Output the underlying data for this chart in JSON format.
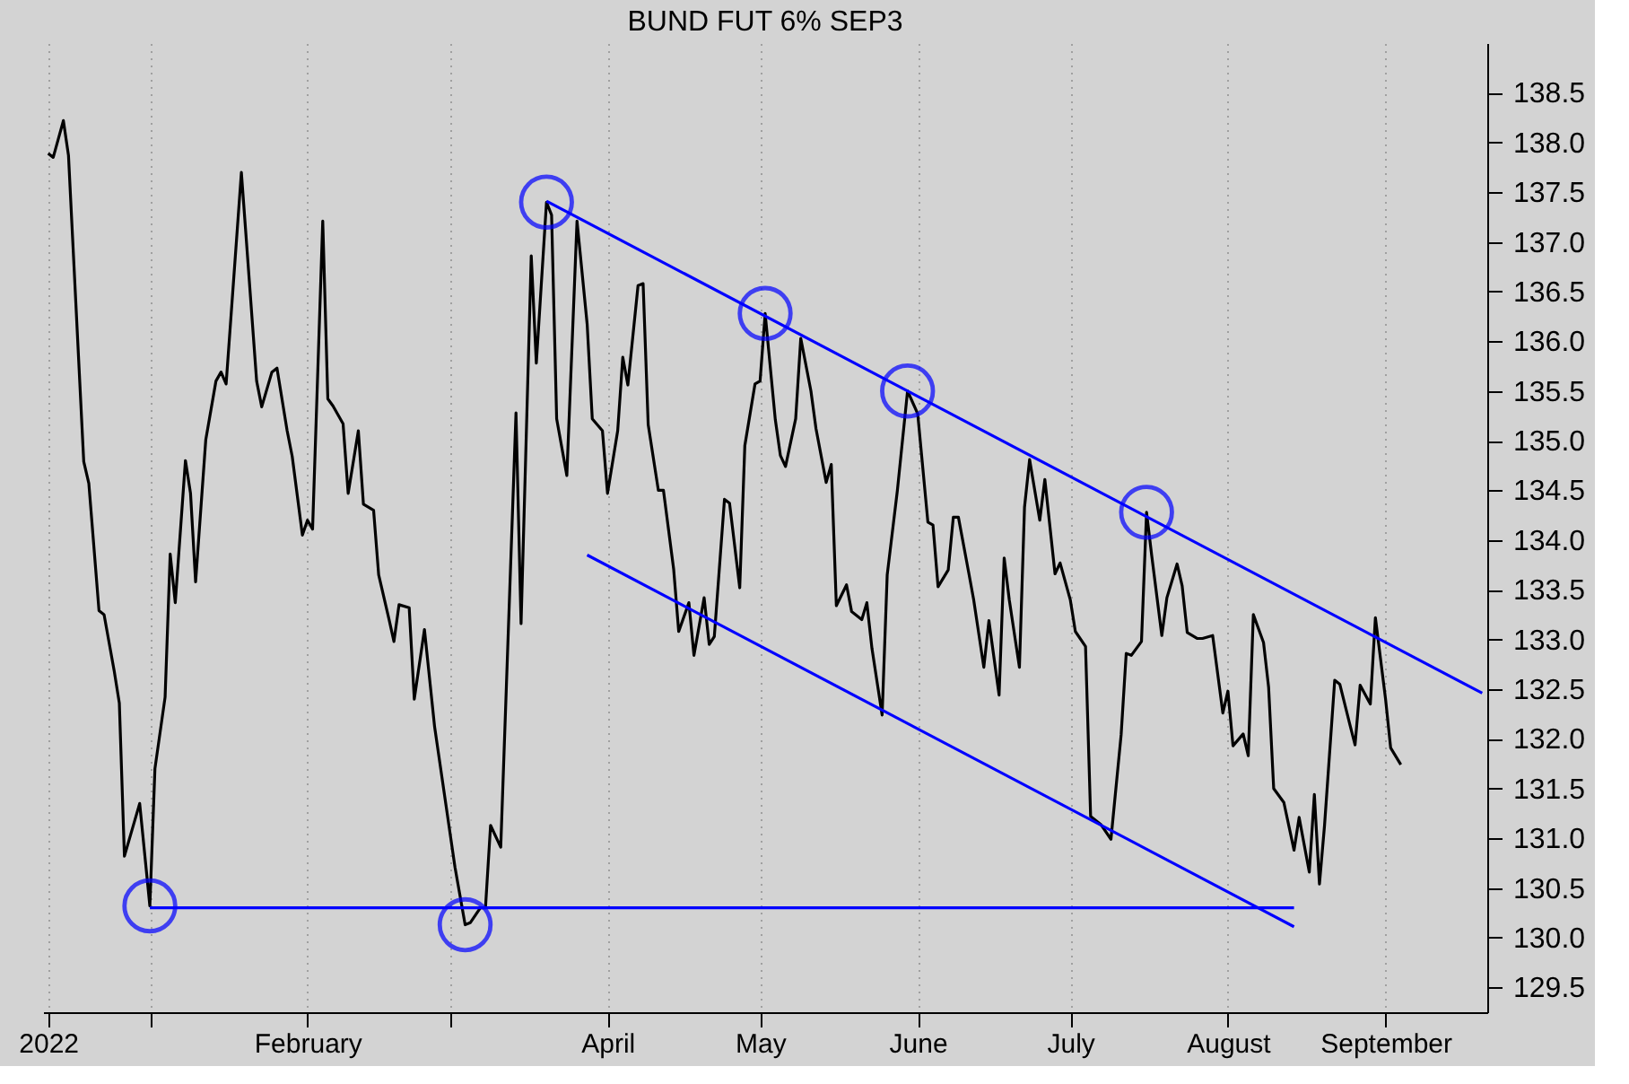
{
  "chart_data": {
    "type": "line",
    "title": "BUND FUT 6% SEP3",
    "xlim": [
      "2022-12-11",
      "2023-09-21"
    ],
    "ylim": [
      129.25,
      139.0
    ],
    "xticks": [
      {
        "value": "2022-12-12",
        "label": "2022"
      },
      {
        "value": "2023-01-01",
        "label": null
      },
      {
        "value": "2023-02-01",
        "label": "February"
      },
      {
        "value": "2023-03-01",
        "label": null
      },
      {
        "value": "2023-04-01",
        "label": "April"
      },
      {
        "value": "2023-05-01",
        "label": "May"
      },
      {
        "value": "2023-06-01",
        "label": "June"
      },
      {
        "value": "2023-07-01",
        "label": "July"
      },
      {
        "value": "2023-08-01",
        "label": "August"
      },
      {
        "value": "2023-09-01",
        "label": "September"
      }
    ],
    "yticks": [
      {
        "value": 129.5,
        "label": "129.5"
      },
      {
        "value": 130,
        "label": "130.0"
      },
      {
        "value": 130.5,
        "label": "130.5"
      },
      {
        "value": 131,
        "label": "131.0"
      },
      {
        "value": 131.5,
        "label": "131.5"
      },
      {
        "value": 132,
        "label": "132.0"
      },
      {
        "value": 132.5,
        "label": "132.5"
      },
      {
        "value": 133,
        "label": "133.0"
      },
      {
        "value": 133.5,
        "label": "133.5"
      },
      {
        "value": 134,
        "label": "134.0"
      },
      {
        "value": 134.5,
        "label": "134.5"
      },
      {
        "value": 135,
        "label": "135.0"
      },
      {
        "value": 135.5,
        "label": "135.5"
      },
      {
        "value": 136,
        "label": "136.0"
      },
      {
        "value": 136.5,
        "label": "136.5"
      },
      {
        "value": 137,
        "label": "137.0"
      },
      {
        "value": 137.5,
        "label": "137.5"
      },
      {
        "value": 138,
        "label": "138.0"
      },
      {
        "value": 138.5,
        "label": "138.5"
      }
    ],
    "grid": "x",
    "line_style": "solid",
    "series": [
      {
        "color": "#000000",
        "x": [
          "2022-12-12",
          "2022-12-13",
          "2022-12-15",
          "2022-12-16",
          "2022-12-19",
          "2022-12-20",
          "2022-12-22",
          "2022-12-23",
          "2022-12-25",
          "2022-12-26",
          "2022-12-27",
          "2022-12-30",
          "2023-01-01",
          "2023-01-02",
          "2023-01-04",
          "2023-01-05",
          "2023-01-06",
          "2023-01-08",
          "2023-01-09",
          "2023-01-10",
          "2023-01-12",
          "2023-01-14",
          "2023-01-15",
          "2023-01-16",
          "2023-01-19",
          "2023-01-22",
          "2023-01-23",
          "2023-01-25",
          "2023-01-26",
          "2023-01-28",
          "2023-01-29",
          "2023-01-31",
          "2023-02-01",
          "2023-02-02",
          "2023-02-04",
          "2023-02-05",
          "2023-02-06",
          "2023-02-08",
          "2023-02-09",
          "2023-02-11",
          "2023-02-12",
          "2023-02-14",
          "2023-02-15",
          "2023-02-17",
          "2023-02-18",
          "2023-02-19",
          "2023-02-21",
          "2023-02-22",
          "2023-02-24",
          "2023-02-26",
          "2023-03-02",
          "2023-03-04",
          "2023-03-05",
          "2023-03-07",
          "2023-03-08",
          "2023-03-09",
          "2023-03-11",
          "2023-03-14",
          "2023-03-15",
          "2023-03-17",
          "2023-03-18",
          "2023-03-20",
          "2023-03-21",
          "2023-03-22",
          "2023-03-24",
          "2023-03-26",
          "2023-03-28",
          "2023-03-29",
          "2023-03-31",
          "2023-04-01",
          "2023-04-03",
          "2023-04-04",
          "2023-04-05",
          "2023-04-07",
          "2023-04-08",
          "2023-04-09",
          "2023-04-11",
          "2023-04-12",
          "2023-04-14",
          "2023-04-15",
          "2023-04-17",
          "2023-04-18",
          "2023-04-20",
          "2023-04-21",
          "2023-04-22",
          "2023-04-24",
          "2023-04-25",
          "2023-04-27",
          "2023-04-28",
          "2023-04-30",
          "2023-05-01",
          "2023-05-02",
          "2023-05-04",
          "2023-05-05",
          "2023-05-06",
          "2023-05-08",
          "2023-05-09",
          "2023-05-11",
          "2023-05-12",
          "2023-05-14",
          "2023-05-15",
          "2023-05-16",
          "2023-05-18",
          "2023-05-19",
          "2023-05-21",
          "2023-05-22",
          "2023-05-23",
          "2023-05-25",
          "2023-05-26",
          "2023-05-28",
          "2023-05-30",
          "2023-06-01",
          "2023-06-03",
          "2023-06-04",
          "2023-06-05",
          "2023-06-07",
          "2023-06-08",
          "2023-06-09",
          "2023-06-11",
          "2023-06-12",
          "2023-06-14",
          "2023-06-15",
          "2023-06-17",
          "2023-06-18",
          "2023-06-19",
          "2023-06-21",
          "2023-06-22",
          "2023-06-23",
          "2023-06-25",
          "2023-06-26",
          "2023-06-28",
          "2023-06-29",
          "2023-07-01",
          "2023-07-02",
          "2023-07-04",
          "2023-07-05",
          "2023-07-07",
          "2023-07-09",
          "2023-07-11",
          "2023-07-12",
          "2023-07-13",
          "2023-07-15",
          "2023-07-16",
          "2023-07-17",
          "2023-07-19",
          "2023-07-20",
          "2023-07-22",
          "2023-07-23",
          "2023-07-24",
          "2023-07-26",
          "2023-07-27",
          "2023-07-29",
          "2023-07-31",
          "2023-08-01",
          "2023-08-02",
          "2023-08-04",
          "2023-08-05",
          "2023-08-06",
          "2023-08-08",
          "2023-08-09",
          "2023-08-10",
          "2023-08-12",
          "2023-08-14",
          "2023-08-15",
          "2023-08-17",
          "2023-08-18",
          "2023-08-19",
          "2023-08-20",
          "2023-08-22",
          "2023-08-23",
          "2023-08-25",
          "2023-08-26",
          "2023-08-27",
          "2023-08-29",
          "2023-08-30",
          "2023-09-01",
          "2023-09-02",
          "2023-09-04"
        ],
        "values": [
          137.89,
          137.85,
          138.22,
          137.87,
          134.79,
          134.57,
          133.29,
          133.25,
          132.68,
          132.36,
          130.82,
          131.35,
          130.32,
          131.7,
          132.42,
          133.86,
          133.37,
          134.8,
          134.47,
          133.58,
          135.01,
          135.6,
          135.69,
          135.57,
          137.7,
          135.6,
          135.34,
          135.69,
          135.73,
          135.1,
          134.84,
          134.05,
          134.2,
          134.11,
          137.21,
          135.42,
          135.35,
          135.17,
          134.47,
          135.1,
          134.36,
          134.3,
          133.65,
          133.21,
          132.98,
          133.35,
          133.32,
          132.4,
          133.1,
          132.12,
          130.71,
          130.13,
          130.15,
          130.3,
          130.3,
          131.13,
          130.91,
          135.28,
          133.16,
          136.86,
          135.78,
          137.4,
          137.27,
          135.22,
          134.65,
          137.21,
          136.17,
          135.22,
          135.1,
          134.47,
          135.1,
          135.84,
          135.56,
          136.56,
          136.58,
          135.16,
          134.5,
          134.5,
          133.71,
          133.08,
          133.37,
          132.84,
          133.42,
          132.95,
          133.03,
          134.41,
          134.37,
          133.52,
          134.95,
          135.57,
          135.6,
          136.28,
          135.21,
          134.85,
          134.74,
          135.22,
          136.03,
          135.5,
          135.12,
          134.58,
          134.76,
          133.34,
          133.55,
          133.28,
          133.2,
          133.37,
          132.91,
          132.24,
          133.65,
          134.5,
          135.5,
          135.27,
          134.18,
          134.15,
          133.53,
          133.7,
          134.23,
          134.23,
          133.68,
          133.4,
          132.72,
          133.19,
          132.44,
          133.82,
          133.4,
          132.72,
          134.33,
          134.81,
          134.2,
          134.61,
          133.66,
          133.77,
          133.4,
          133.08,
          132.93,
          131.22,
          131.14,
          130.99,
          132.04,
          132.86,
          132.84,
          132.98,
          134.28,
          133.85,
          133.04,
          133.42,
          133.76,
          133.54,
          133.07,
          133.01,
          133.01,
          133.04,
          132.26,
          132.48,
          131.93,
          132.05,
          131.83,
          133.25,
          132.97,
          132.52,
          131.5,
          131.36,
          130.88,
          131.21,
          130.66,
          131.44,
          130.54,
          131.13,
          132.59,
          132.55,
          132.14,
          131.94,
          132.54,
          132.35,
          133.22,
          132.4,
          131.91,
          131.74
        ]
      },
      {
        "type": "line",
        "color": "#0000ff",
        "x": [
          "2023-01-01",
          "2023-08-14"
        ],
        "values": [
          130.3,
          130.3
        ]
      },
      {
        "type": "line",
        "color": "#0000ff",
        "x": [
          "2023-03-20",
          "2023-09-20"
        ],
        "values": [
          137.41,
          132.46
        ]
      },
      {
        "type": "line",
        "color": "#0000ff",
        "x": [
          "2023-03-28",
          "2023-08-14"
        ],
        "values": [
          133.85,
          130.11
        ]
      },
      {
        "type": "scatter",
        "color": "#0000ff",
        "marker": "circle",
        "x": [
          "2023-01-01",
          "2023-03-04",
          "2023-03-20",
          "2023-05-02",
          "2023-05-30",
          "2023-07-16"
        ],
        "values": [
          130.32,
          130.13,
          137.4,
          136.28,
          135.5,
          134.28
        ]
      }
    ]
  }
}
